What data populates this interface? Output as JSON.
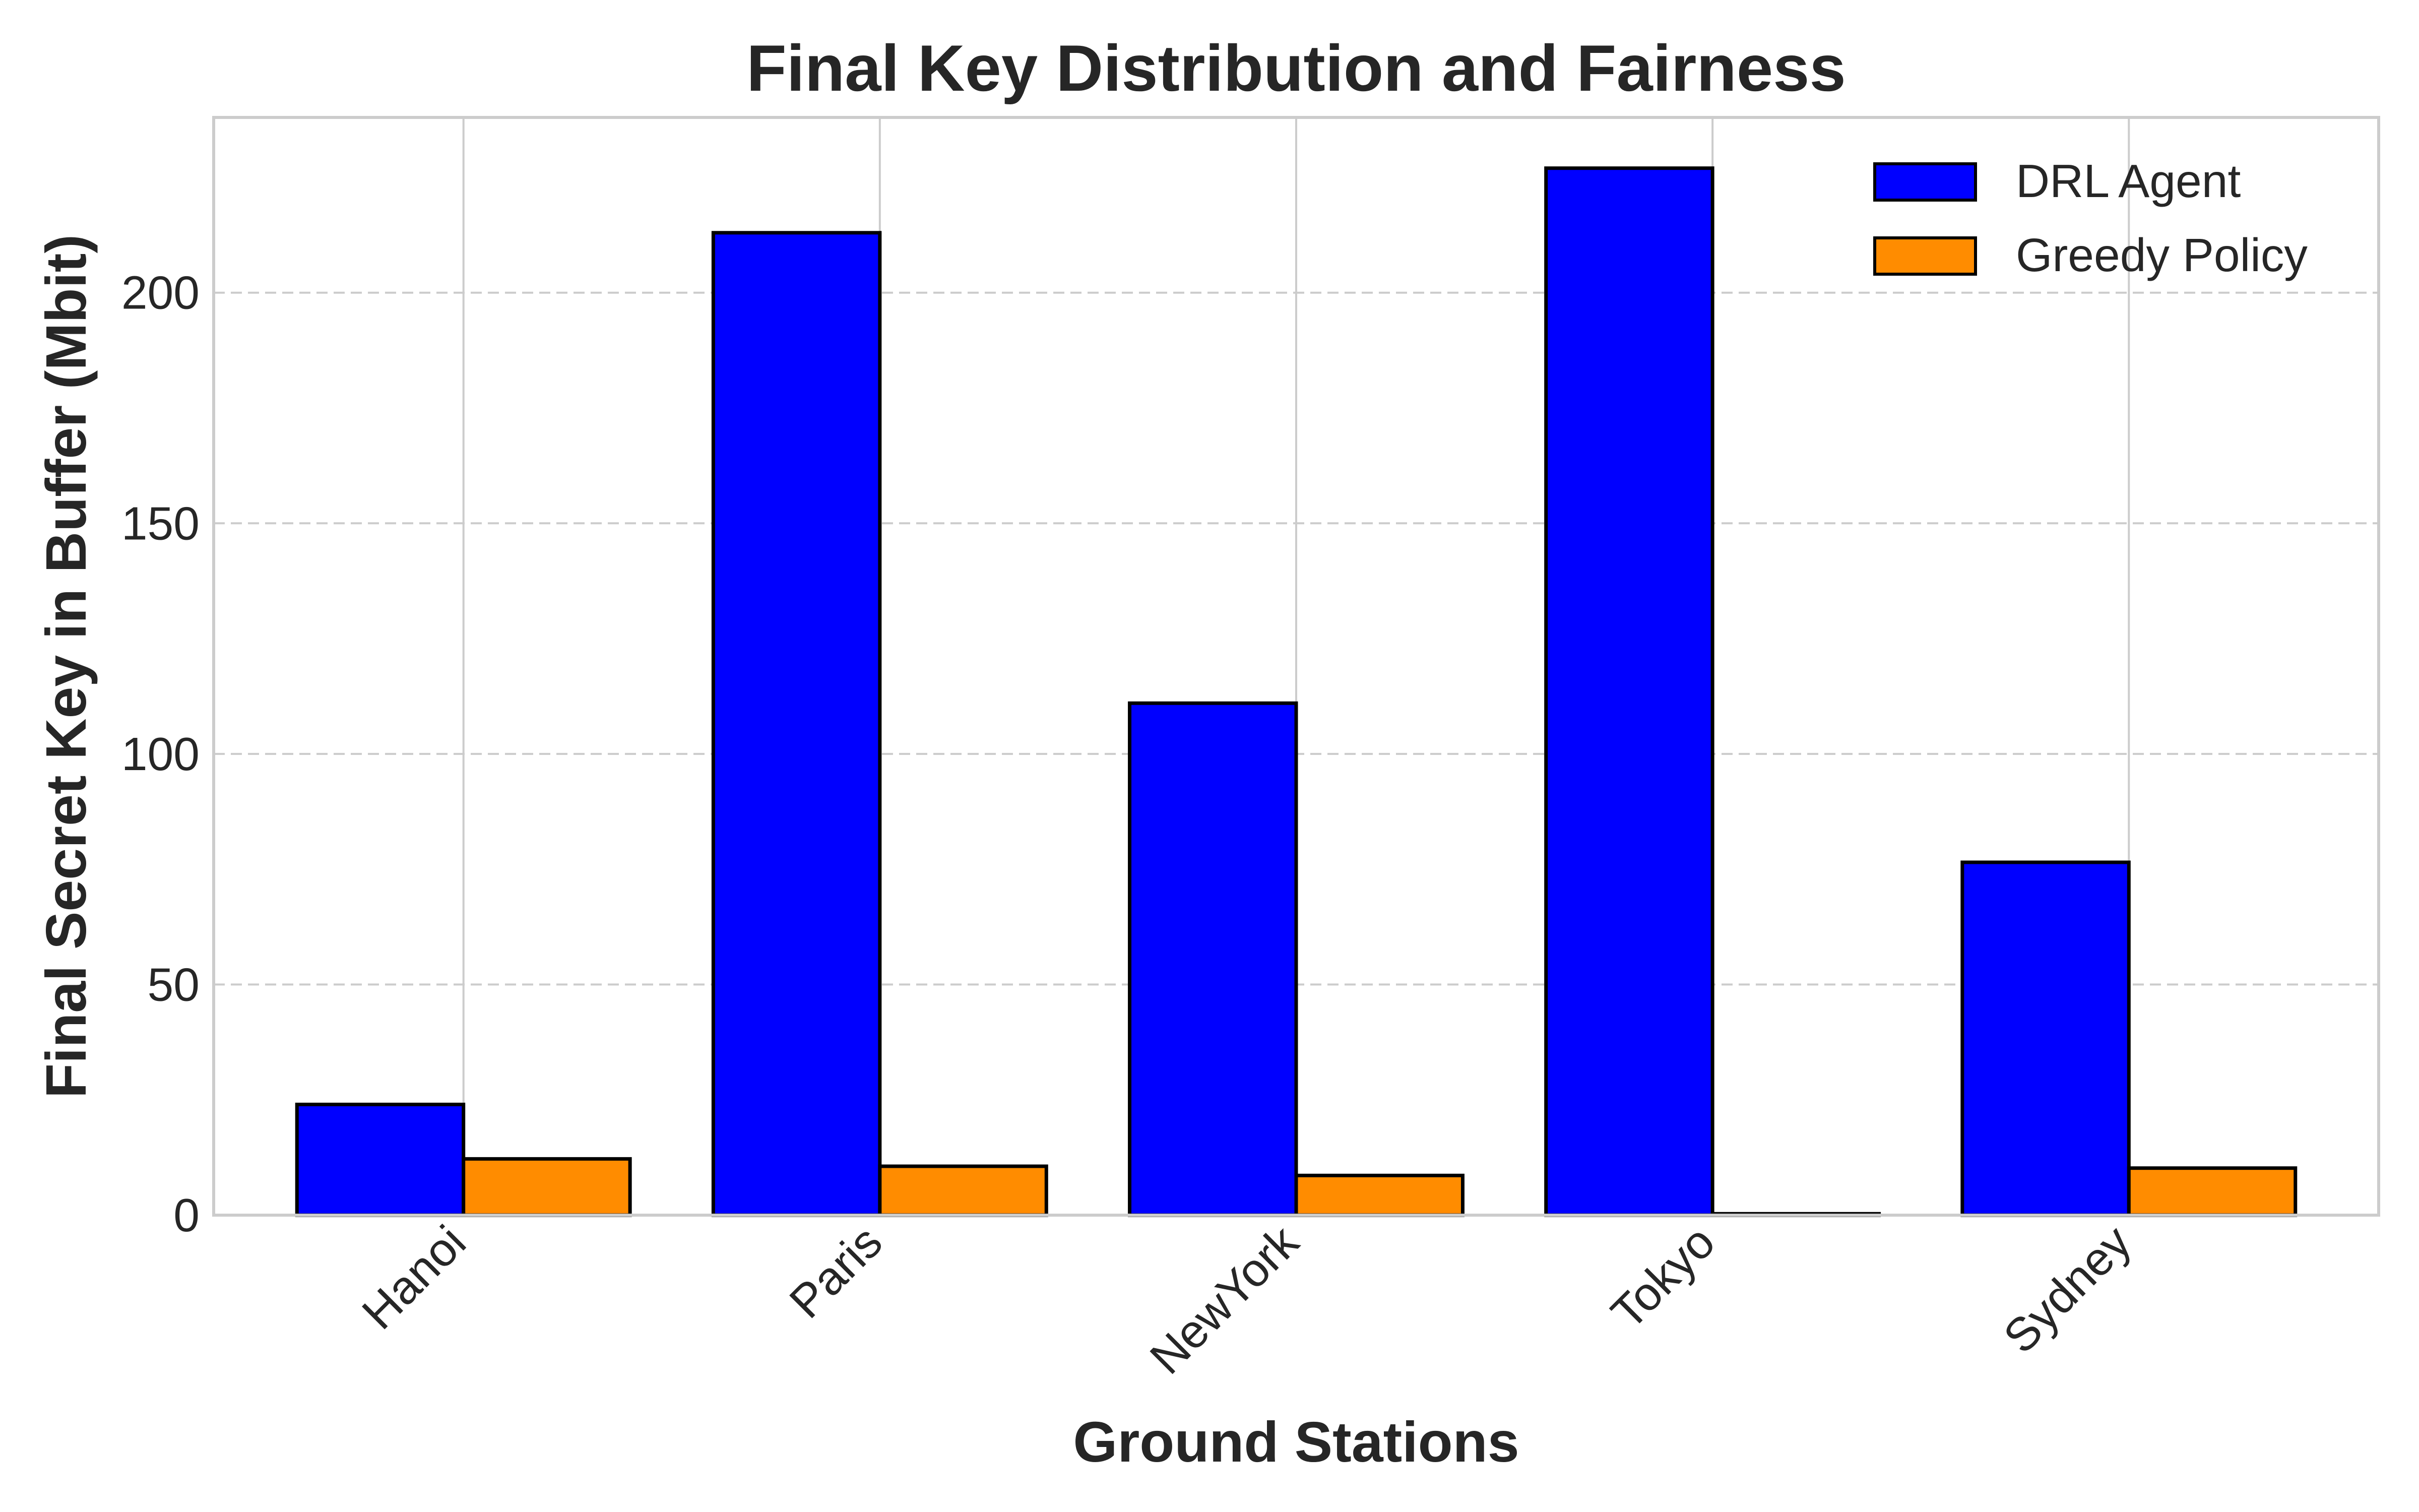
{
  "chart_data": {
    "type": "bar",
    "title": "Final Key Distribution and Fairness",
    "xlabel": "Ground Stations",
    "ylabel": "Final Secret Key in Buffer (Mbit)",
    "categories": [
      "Hanoi",
      "Paris",
      "NewYork",
      "Tokyo",
      "Sydney"
    ],
    "series": [
      {
        "name": "DRL Agent",
        "color": "#0000ff",
        "values": [
          24,
          213,
          111,
          227,
          76.5
        ]
      },
      {
        "name": "Greedy Policy",
        "color": "#ff8c00",
        "values": [
          12.2,
          10.6,
          8.6,
          0.3,
          10.2
        ]
      }
    ],
    "ylim": [
      0,
      238
    ],
    "yticks": [
      0,
      50,
      100,
      150,
      200
    ],
    "ytick_labels": [
      "0",
      "50",
      "100",
      "150",
      "200"
    ],
    "grid": {
      "y": "dashed",
      "x": "solid"
    },
    "legend_position": "top-right",
    "xtick_rotation": -45
  }
}
